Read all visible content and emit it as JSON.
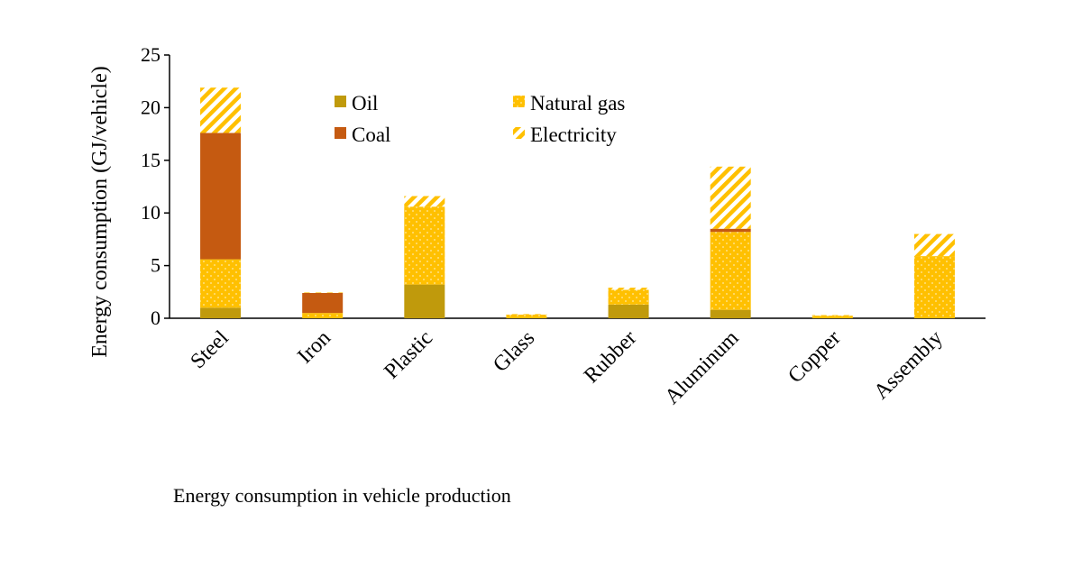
{
  "caption": "Energy consumption in vehicle production",
  "chart_data": {
    "type": "bar",
    "stacked": true,
    "title": "",
    "xlabel": "",
    "ylabel": "Energy consumption  (GJ/vehicle)",
    "ylim": [
      0,
      25
    ],
    "yticks": [
      0,
      5,
      10,
      15,
      20,
      25
    ],
    "grid": false,
    "legend_position": "top-center",
    "categories": [
      "Steel",
      "Iron",
      "Plastic",
      "Glass",
      "Rubber",
      "Aluminum",
      "Copper",
      "Assembly"
    ],
    "series": [
      {
        "name": "Oil",
        "color": "#C09A0C",
        "pattern": "solid",
        "values": [
          1.0,
          0.0,
          3.2,
          0.0,
          1.3,
          0.8,
          0.0,
          0.0
        ]
      },
      {
        "name": "Natural gas",
        "color": "#FFC000",
        "pattern": "dots",
        "values": [
          4.6,
          0.5,
          7.4,
          0.35,
          1.4,
          7.4,
          0.25,
          5.9
        ]
      },
      {
        "name": "Coal",
        "color": "#C55A11",
        "pattern": "solid",
        "values": [
          12.0,
          1.9,
          0.0,
          0.0,
          0.0,
          0.3,
          0.0,
          0.0
        ]
      },
      {
        "name": "Electricity",
        "color": "#FFC000",
        "pattern": "hatch",
        "values": [
          4.3,
          0.05,
          1.0,
          0.05,
          0.2,
          5.9,
          0.05,
          2.1
        ]
      }
    ]
  }
}
